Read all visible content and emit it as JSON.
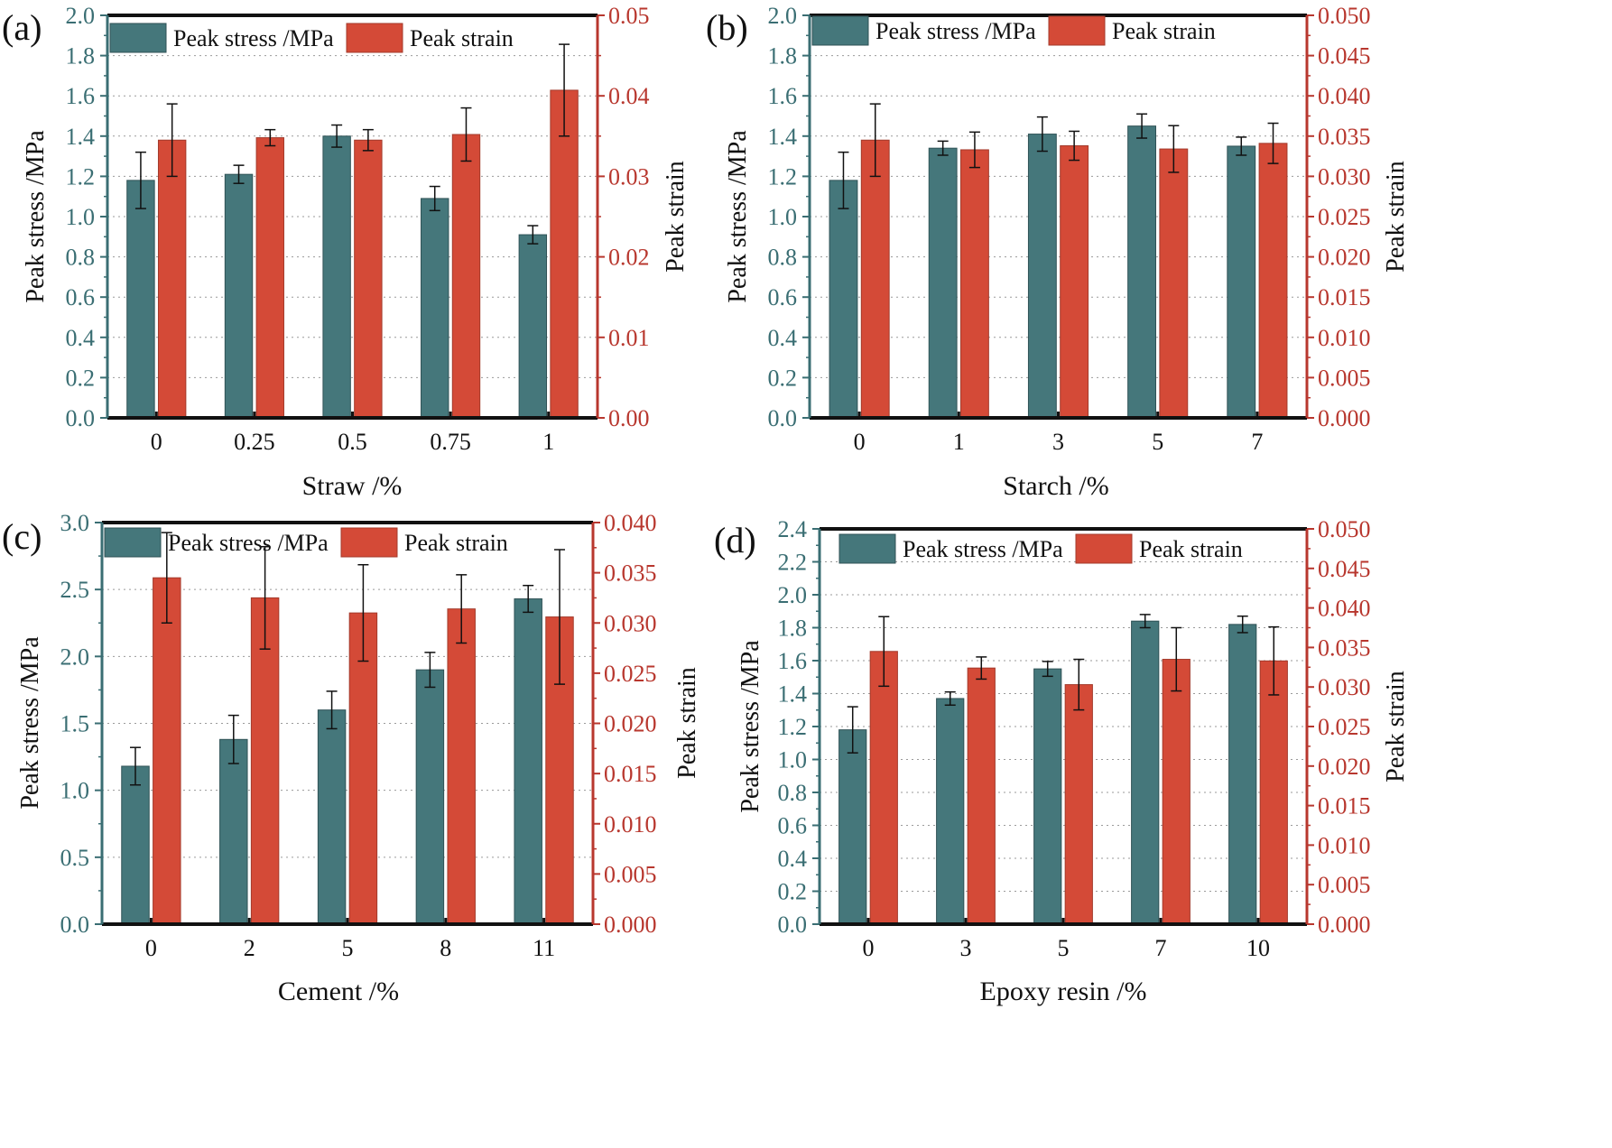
{
  "figure": {
    "colors": {
      "stress": "#45777b",
      "strain": "#d44a37",
      "strain_axis": "#b8372e",
      "stress_axis": "#3a6e73"
    }
  },
  "chart_data": [
    {
      "panel_label": "(a)",
      "type": "bar",
      "xlabel": "Straw /%",
      "ylabel_left": "Peak stress /MPa",
      "ylabel_right": "Peak strain",
      "categories": [
        "0",
        "0.25",
        "0.5",
        "0.75",
        "1"
      ],
      "ylim_left": [
        0,
        2.0
      ],
      "yticks_left": [
        "0.0",
        "0.2",
        "0.4",
        "0.6",
        "0.8",
        "1.0",
        "1.2",
        "1.4",
        "1.6",
        "1.8",
        "2.0"
      ],
      "ylim_right": [
        0,
        0.05
      ],
      "yticks_right": [
        "0.00",
        "0.01",
        "0.02",
        "0.03",
        "0.04",
        "0.05"
      ],
      "series": [
        {
          "name": "Peak stress /MPa",
          "axis": "left",
          "values": [
            1.18,
            1.21,
            1.4,
            1.09,
            0.91
          ],
          "errors": [
            0.14,
            0.045,
            0.055,
            0.06,
            0.045
          ]
        },
        {
          "name": "Peak strain",
          "axis": "right",
          "values": [
            0.0345,
            0.0348,
            0.0345,
            0.0352,
            0.0407
          ],
          "errors": [
            0.0045,
            0.001,
            0.0013,
            0.0033,
            0.0057
          ]
        }
      ]
    },
    {
      "panel_label": "(b)",
      "type": "bar",
      "xlabel": "Starch /%",
      "ylabel_left": "Peak stress /MPa",
      "ylabel_right": "Peak strain",
      "categories": [
        "0",
        "1",
        "3",
        "5",
        "7"
      ],
      "ylim_left": [
        0,
        2.0
      ],
      "yticks_left": [
        "0.0",
        "0.2",
        "0.4",
        "0.6",
        "0.8",
        "1.0",
        "1.2",
        "1.4",
        "1.6",
        "1.8",
        "2.0"
      ],
      "ylim_right": [
        0,
        0.05
      ],
      "yticks_right": [
        "0.000",
        "0.005",
        "0.010",
        "0.015",
        "0.020",
        "0.025",
        "0.030",
        "0.035",
        "0.040",
        "0.045",
        "0.050"
      ],
      "series": [
        {
          "name": "Peak stress /MPa",
          "axis": "left",
          "values": [
            1.18,
            1.34,
            1.41,
            1.45,
            1.35
          ],
          "errors": [
            0.14,
            0.035,
            0.085,
            0.06,
            0.045
          ]
        },
        {
          "name": "Peak strain",
          "axis": "right",
          "values": [
            0.0345,
            0.0333,
            0.0338,
            0.0334,
            0.0341
          ],
          "errors": [
            0.0045,
            0.0022,
            0.0018,
            0.0029,
            0.0025
          ]
        }
      ]
    },
    {
      "panel_label": "(c)",
      "type": "bar",
      "xlabel": "Cement /%",
      "ylabel_left": "Peak stress /MPa",
      "ylabel_right": "Peak strain",
      "categories": [
        "0",
        "2",
        "5",
        "8",
        "11"
      ],
      "ylim_left": [
        0,
        3.0
      ],
      "yticks_left": [
        "0.0",
        "0.5",
        "1.0",
        "1.5",
        "2.0",
        "2.5",
        "3.0"
      ],
      "ylim_right": [
        0,
        0.04
      ],
      "yticks_right": [
        "0.000",
        "0.005",
        "0.010",
        "0.015",
        "0.020",
        "0.025",
        "0.030",
        "0.035",
        "0.040"
      ],
      "series": [
        {
          "name": "Peak stress /MPa",
          "axis": "left",
          "values": [
            1.18,
            1.38,
            1.6,
            1.9,
            2.43
          ],
          "errors": [
            0.14,
            0.18,
            0.14,
            0.13,
            0.1
          ]
        },
        {
          "name": "Peak strain",
          "axis": "right",
          "values": [
            0.0345,
            0.0325,
            0.031,
            0.0314,
            0.0306
          ],
          "errors": [
            0.0045,
            0.0051,
            0.0048,
            0.0034,
            0.0067
          ]
        }
      ]
    },
    {
      "panel_label": "(d)",
      "type": "bar",
      "xlabel": "Epoxy resin /%",
      "ylabel_left": "Peak stress /MPa",
      "ylabel_right": "Peak strain",
      "categories": [
        "0",
        "3",
        "5",
        "7",
        "10"
      ],
      "ylim_left": [
        0,
        2.4
      ],
      "yticks_left": [
        "0.0",
        "0.2",
        "0.4",
        "0.6",
        "0.8",
        "1.0",
        "1.2",
        "1.4",
        "1.6",
        "1.8",
        "2.0",
        "2.2",
        "2.4"
      ],
      "ylim_right": [
        0,
        0.05
      ],
      "yticks_right": [
        "0.000",
        "0.005",
        "0.010",
        "0.015",
        "0.020",
        "0.025",
        "0.030",
        "0.035",
        "0.040",
        "0.045",
        "0.050"
      ],
      "series": [
        {
          "name": "Peak stress /MPa",
          "axis": "left",
          "values": [
            1.18,
            1.37,
            1.55,
            1.84,
            1.82
          ],
          "errors": [
            0.14,
            0.04,
            0.045,
            0.04,
            0.05
          ]
        },
        {
          "name": "Peak strain",
          "axis": "right",
          "values": [
            0.0345,
            0.0324,
            0.0303,
            0.0335,
            0.0333
          ],
          "errors": [
            0.0044,
            0.0014,
            0.0032,
            0.004,
            0.0043
          ]
        }
      ]
    }
  ]
}
